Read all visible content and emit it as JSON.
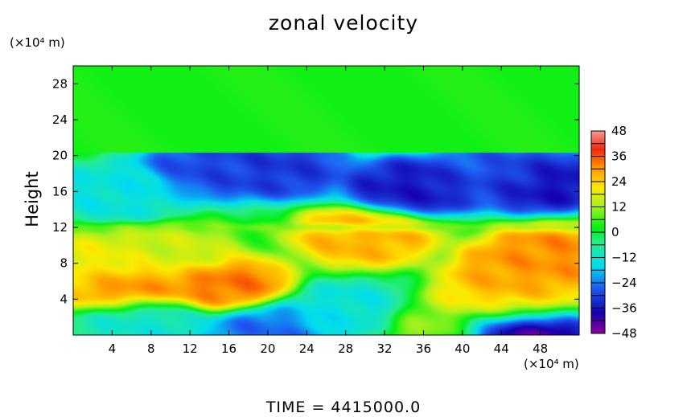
{
  "chart_data": {
    "type": "heatmap",
    "title": "zonal velocity",
    "ylabel": "Height",
    "xlabel": "",
    "x_unit": "(×10⁴ m)",
    "y_unit": "(×10⁴ m)",
    "footer": "TIME = 4415000.0",
    "xlim": [
      0,
      52
    ],
    "ylim": [
      0,
      30
    ],
    "x_ticks": [
      4,
      8,
      12,
      16,
      20,
      24,
      28,
      32,
      36,
      40,
      44,
      48
    ],
    "y_ticks": [
      4,
      8,
      12,
      16,
      20,
      24,
      28
    ],
    "colorbar": {
      "min": -48,
      "max": 48,
      "tick_values": [
        48,
        36,
        24,
        12,
        0,
        -12,
        -24,
        -36,
        -48
      ],
      "tick_labels": [
        "48",
        "36",
        "24",
        "12",
        "0",
        "−12",
        "−24",
        "−36",
        "−48"
      ]
    },
    "features": [
      {
        "x": 0,
        "y": 24,
        "value": 4
      },
      {
        "x": 6,
        "y": 5.5,
        "value": 32
      },
      {
        "x": 15,
        "y": 5.5,
        "value": 34
      },
      {
        "x": 3,
        "y": 8,
        "value": 20
      },
      {
        "x": 10,
        "y": 9,
        "value": 16
      },
      {
        "x": 46,
        "y": 7,
        "value": 30
      },
      {
        "x": 49,
        "y": 9,
        "value": 32
      },
      {
        "x": 30,
        "y": 11,
        "value": 28
      },
      {
        "x": 44,
        "y": 3.5,
        "value": 26
      },
      {
        "x": 14,
        "y": 18.5,
        "value": -30
      },
      {
        "x": 21,
        "y": 18.5,
        "value": -32
      },
      {
        "x": 35,
        "y": 16.5,
        "value": -36
      },
      {
        "x": 44,
        "y": 18,
        "value": -28
      },
      {
        "x": 48,
        "y": 17,
        "value": -38
      },
      {
        "x": 5,
        "y": 16,
        "value": -14
      },
      {
        "x": 45,
        "y": 0.5,
        "value": -46
      },
      {
        "x": 20,
        "y": 0.5,
        "value": -26
      },
      {
        "x": 28,
        "y": 2.5,
        "value": -14
      },
      {
        "x": 8,
        "y": 1.5,
        "value": -12
      },
      {
        "x": 38,
        "y": 1,
        "value": 12
      }
    ]
  }
}
